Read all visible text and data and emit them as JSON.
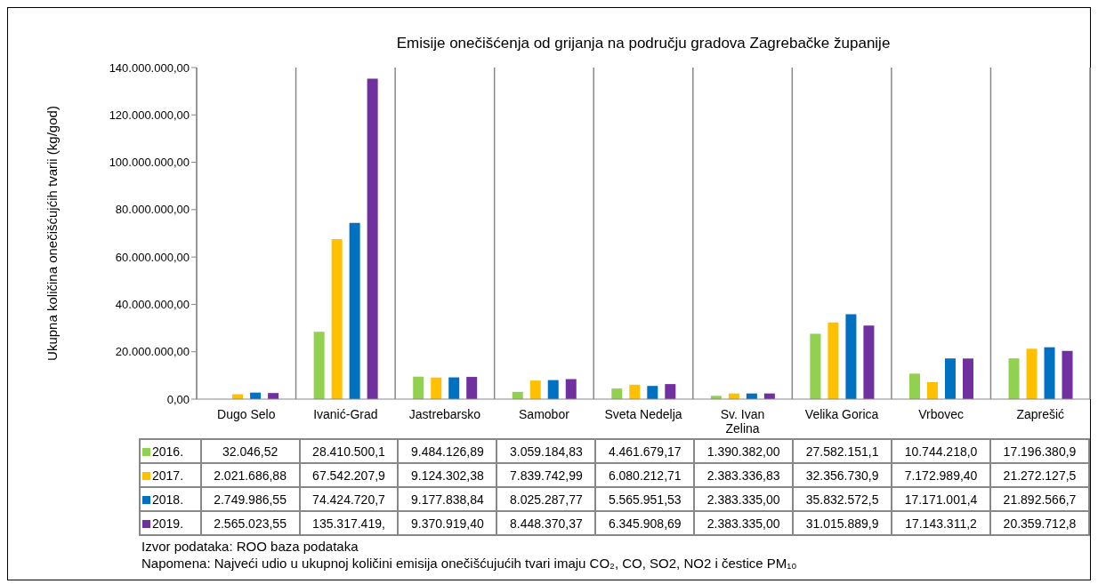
{
  "chart_data": {
    "type": "bar",
    "title": "Emisije onečišćenja od grijanja na području gradova Zagrebačke županije",
    "ylabel": "Ukupna količina onečišćujćih tvarii (kg/god)",
    "categories": [
      "Dugo Selo",
      "Ivanić-Grad",
      "Jastrebarsko",
      "Samobor",
      "Sveta Nedelja",
      "Sv. Ivan Zelina",
      "Velika Gorica",
      "Vrbovec",
      "Zaprešić"
    ],
    "series": [
      {
        "name": "2016.",
        "color": "#92d050",
        "values": [
          32046.52,
          28410500.1,
          9484126.89,
          3059184.83,
          4461679.17,
          1390382.0,
          27582151.1,
          10744218.0,
          17196380.9
        ],
        "value_labels": [
          "32.046,52",
          "28.410.500,1",
          "9.484.126,89",
          "3.059.184,83",
          "4.461.679,17",
          "1.390.382,00",
          "27.582.151,1",
          "10.744.218,0",
          "17.196.380,9"
        ]
      },
      {
        "name": "2017.",
        "color": "#ffc000",
        "values": [
          2021686.88,
          67542207.9,
          9124302.38,
          7839742.99,
          6080212.71,
          2383336.83,
          32356730.9,
          7172989.4,
          21272127.5
        ],
        "value_labels": [
          "2.021.686,88",
          "67.542.207,9",
          "9.124.302,38",
          "7.839.742,99",
          "6.080.212,71",
          "2.383.336,83",
          "32.356.730,9",
          "7.172.989,40",
          "21.272.127,5"
        ]
      },
      {
        "name": "2018.",
        "color": "#0070c0",
        "values": [
          2749986.55,
          74424720.7,
          9177838.84,
          8025287.77,
          5565951.53,
          2383335.0,
          35832572.5,
          17171001.4,
          21892566.7
        ],
        "value_labels": [
          "2.749.986,55",
          "74.424.720,7",
          "9.177.838,84",
          "8.025.287,77",
          "5.565.951,53",
          "2.383.335,00",
          "35.832.572,5",
          "17.171.001,4",
          "21.892.566,7"
        ]
      },
      {
        "name": "2019.",
        "color": "#7030a0",
        "values": [
          2565023.55,
          135317419,
          9370919.4,
          8448370.37,
          6345908.69,
          2383335.0,
          31015889.9,
          17143311.2,
          20359712.8
        ],
        "value_labels": [
          "2.565.023,55",
          "135.317.419,",
          "9.370.919,40",
          "8.448.370,37",
          "6.345.908,69",
          "2.383.335,00",
          "31.015.889,9",
          "17.143.311,2",
          "20.359.712,8"
        ]
      }
    ],
    "ylim": [
      0,
      140000000
    ],
    "yticks": [
      {
        "value": 0,
        "label": "0,00"
      },
      {
        "value": 20000000,
        "label": "20.000.000,00"
      },
      {
        "value": 40000000,
        "label": "40.000.000,00"
      },
      {
        "value": 60000000,
        "label": "60.000.000,00"
      },
      {
        "value": 80000000,
        "label": "80.000.000,00"
      },
      {
        "value": 100000000,
        "label": "100.000.000,00"
      },
      {
        "value": 120000000,
        "label": "120.000.000,00"
      },
      {
        "value": 140000000,
        "label": "140.000.000,00"
      }
    ],
    "grid": "x",
    "legend": "bottom",
    "annotations": [
      "Izvor podataka: ROO baza podataka",
      "Napomena: Najveći udio u ukupnoj količini emisija onečišćujućih tvari imaju CO₂, CO, SO2, NO2 i čestice PM₁₀"
    ]
  }
}
